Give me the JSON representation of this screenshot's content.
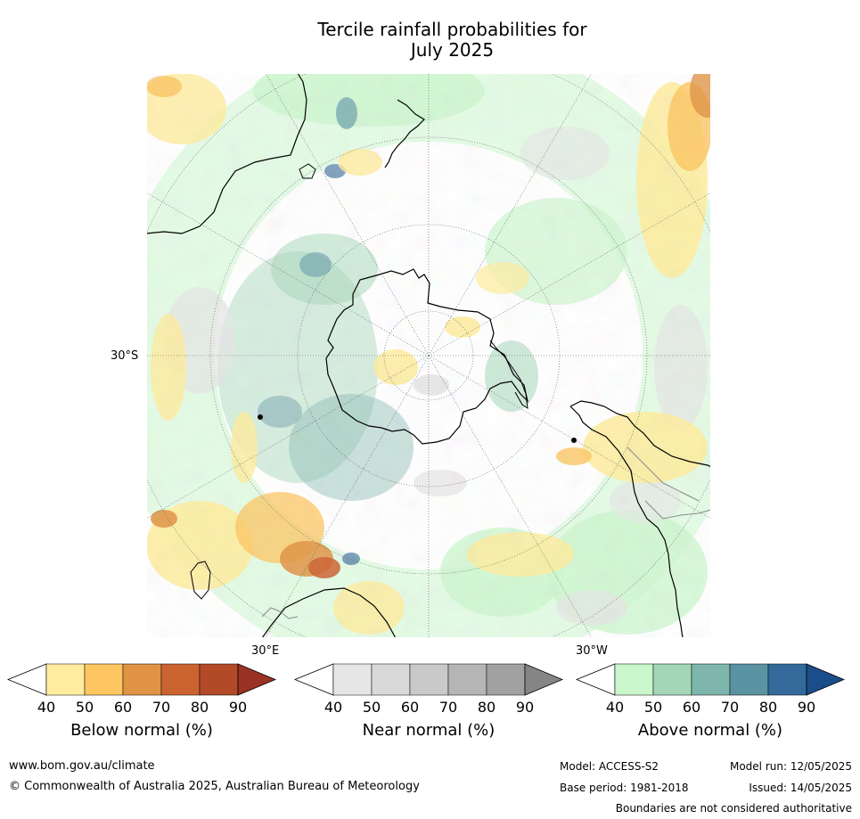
{
  "title_line1": "Tercile rainfall probabilities for",
  "title_line2": "July 2025",
  "map": {
    "projection": "south polar stereographic",
    "lat_label": "30°S",
    "lon_labels": [
      "30°E",
      "30°W"
    ],
    "colors": {
      "land": "#ffffff",
      "coast": "#000000",
      "graticule": "#555555"
    }
  },
  "legends": [
    {
      "name": "below",
      "label": "Below normal (%)",
      "ticks": [
        "40",
        "50",
        "60",
        "70",
        "80",
        "90"
      ],
      "colors": [
        "#ffffff",
        "#ffec9e",
        "#fdc661",
        "#e09344",
        "#cb6331",
        "#b24a28",
        "#9a3324"
      ]
    },
    {
      "name": "near",
      "label": "Near normal (%)",
      "ticks": [
        "40",
        "50",
        "60",
        "70",
        "80",
        "90"
      ],
      "colors": [
        "#ffffff",
        "#e6e6e6",
        "#d9d9d9",
        "#c9c9c9",
        "#b5b5b5",
        "#a1a1a1",
        "#858585"
      ]
    },
    {
      "name": "above",
      "label": "Above normal (%)",
      "ticks": [
        "40",
        "50",
        "60",
        "70",
        "80",
        "90"
      ],
      "colors": [
        "#ffffff",
        "#c9f6cb",
        "#a3d6b7",
        "#7eb6ae",
        "#5a93a2",
        "#336a9b",
        "#1b4d8b"
      ]
    }
  ],
  "footer": {
    "url": "www.bom.gov.au/climate",
    "copyright": "© Commonwealth of Australia 2025, Australian Bureau of Meteorology",
    "model": "Model: ACCESS-S2",
    "model_run": "Model run: 12/05/2025",
    "base_period": "Base period: 1981-2018",
    "issued": "Issued: 14/05/2025",
    "disclaimer": "Boundaries are not considered authoritative"
  }
}
